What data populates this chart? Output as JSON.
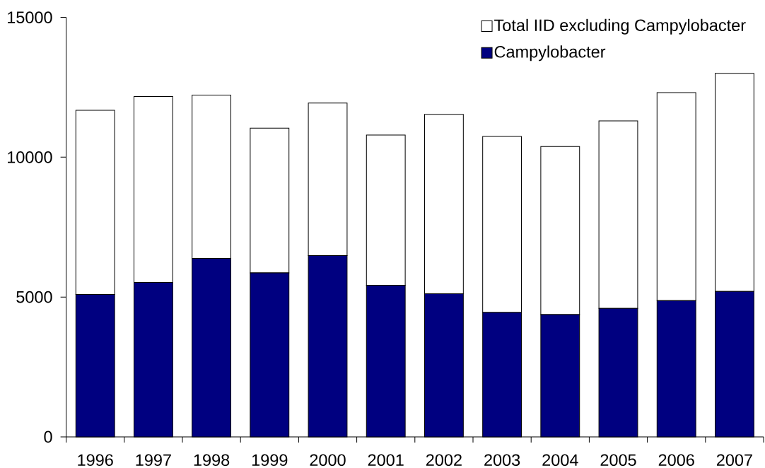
{
  "chart_data": {
    "type": "bar",
    "stacked": true,
    "categories": [
      "1996",
      "1997",
      "1998",
      "1999",
      "2000",
      "2001",
      "2002",
      "2003",
      "2004",
      "2005",
      "2006",
      "2007"
    ],
    "series": [
      {
        "name": "Campylobacter",
        "color": "#000080",
        "values": [
          5090,
          5520,
          6380,
          5860,
          6480,
          5420,
          5120,
          4450,
          4370,
          4590,
          4870,
          5200
        ]
      },
      {
        "name": "Total IID excluding Campylobacter",
        "color": "#ffffff",
        "values": [
          6590,
          6650,
          5840,
          5180,
          5460,
          5370,
          6410,
          6290,
          6010,
          6710,
          7440,
          7800
        ]
      }
    ],
    "ylim": [
      0,
      15000
    ],
    "yticks": [
      0,
      5000,
      10000,
      15000
    ],
    "legend": "top right"
  }
}
